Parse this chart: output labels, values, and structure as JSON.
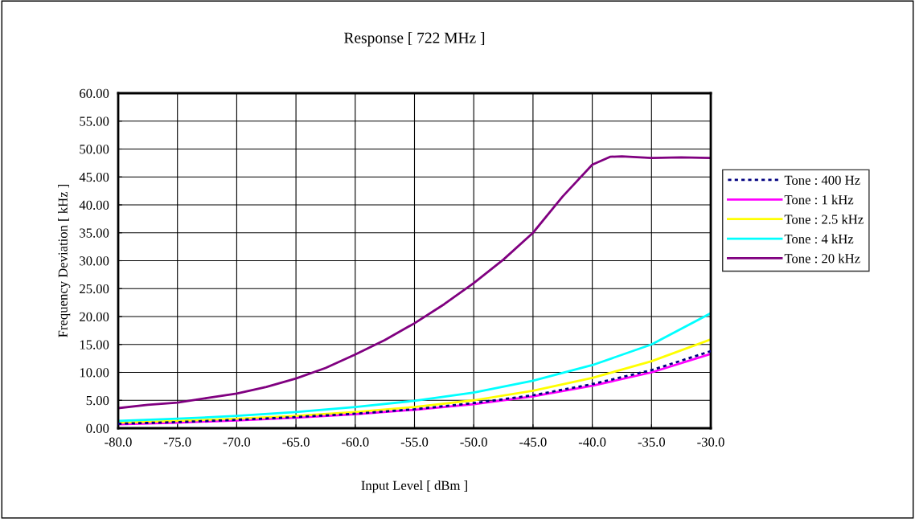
{
  "chart_data": {
    "type": "line",
    "title": "Response [ 722 MHz ]",
    "xlabel": "Input Level [ dBm ]",
    "ylabel": "Frequency Deviation [ kHz ]",
    "x": [
      -80,
      -75,
      -70,
      -65,
      -60,
      -55,
      -50,
      -45,
      -40,
      -35,
      -30
    ],
    "series": [
      {
        "name": "Tone : 400 Hz",
        "color": "#000080",
        "line_style": "dotted",
        "values": [
          0.8,
          1.1,
          1.5,
          2.0,
          2.6,
          3.4,
          4.5,
          5.9,
          7.9,
          10.4,
          13.8
        ]
      },
      {
        "name": "Tone : 1 kHz",
        "color": "#ff00ff",
        "values": [
          0.7,
          1.0,
          1.4,
          1.9,
          2.5,
          3.3,
          4.3,
          5.7,
          7.6,
          10.0,
          13.3
        ]
      },
      {
        "name": "Tone : 2.5 kHz",
        "color": "#ffff00",
        "values": [
          1.0,
          1.3,
          1.7,
          2.2,
          2.9,
          3.8,
          5.0,
          6.7,
          9.0,
          12.0,
          15.9
        ]
      },
      {
        "name": "Tone : 4 kHz",
        "color": "#00ffff",
        "values": [
          1.3,
          1.7,
          2.2,
          2.9,
          3.8,
          4.9,
          6.4,
          8.5,
          11.3,
          15.0,
          20.6
        ]
      },
      {
        "name": "Tone : 20 kHz",
        "color": "#800080",
        "x": [
          -80,
          -77.5,
          -75,
          -72.5,
          -70,
          -67.5,
          -65,
          -62.5,
          -60,
          -57.5,
          -55,
          -52.5,
          -50,
          -47.5,
          -45,
          -42.5,
          -40,
          -38.5,
          -37.5,
          -35,
          -32.5,
          -30
        ],
        "values": [
          3.6,
          4.2,
          4.6,
          5.4,
          6.2,
          7.4,
          8.9,
          10.8,
          13.2,
          15.8,
          18.8,
          22.2,
          26.0,
          30.2,
          35.0,
          41.5,
          47.2,
          48.6,
          48.7,
          48.4,
          48.5,
          48.4
        ]
      }
    ],
    "xlim": [
      -80,
      -30
    ],
    "xticks": [
      {
        "value": -80,
        "label": "-80.0"
      },
      {
        "value": -75,
        "label": "-75.0"
      },
      {
        "value": -70,
        "label": "-70.0"
      },
      {
        "value": -65,
        "label": "-65.0"
      },
      {
        "value": -60,
        "label": "-60.0"
      },
      {
        "value": -55,
        "label": "-55.0"
      },
      {
        "value": -50,
        "label": "-50.0"
      },
      {
        "value": -45,
        "label": "-45.0"
      },
      {
        "value": -40,
        "label": "-40.0"
      },
      {
        "value": -35,
        "label": "-35.0"
      },
      {
        "value": -30,
        "label": "-30.0"
      }
    ],
    "ylim": [
      0,
      60
    ],
    "yticks": [
      {
        "value": 0,
        "label": "0.00"
      },
      {
        "value": 5,
        "label": "5.00"
      },
      {
        "value": 10,
        "label": "10.00"
      },
      {
        "value": 15,
        "label": "15.00"
      },
      {
        "value": 20,
        "label": "20.00"
      },
      {
        "value": 25,
        "label": "25.00"
      },
      {
        "value": 30,
        "label": "30.00"
      },
      {
        "value": 35,
        "label": "35.00"
      },
      {
        "value": 40,
        "label": "40.00"
      },
      {
        "value": 45,
        "label": "45.00"
      },
      {
        "value": 50,
        "label": "50.00"
      },
      {
        "value": 55,
        "label": "55.00"
      },
      {
        "value": 60,
        "label": "60.00"
      }
    ],
    "grid": true,
    "legend": "right"
  }
}
